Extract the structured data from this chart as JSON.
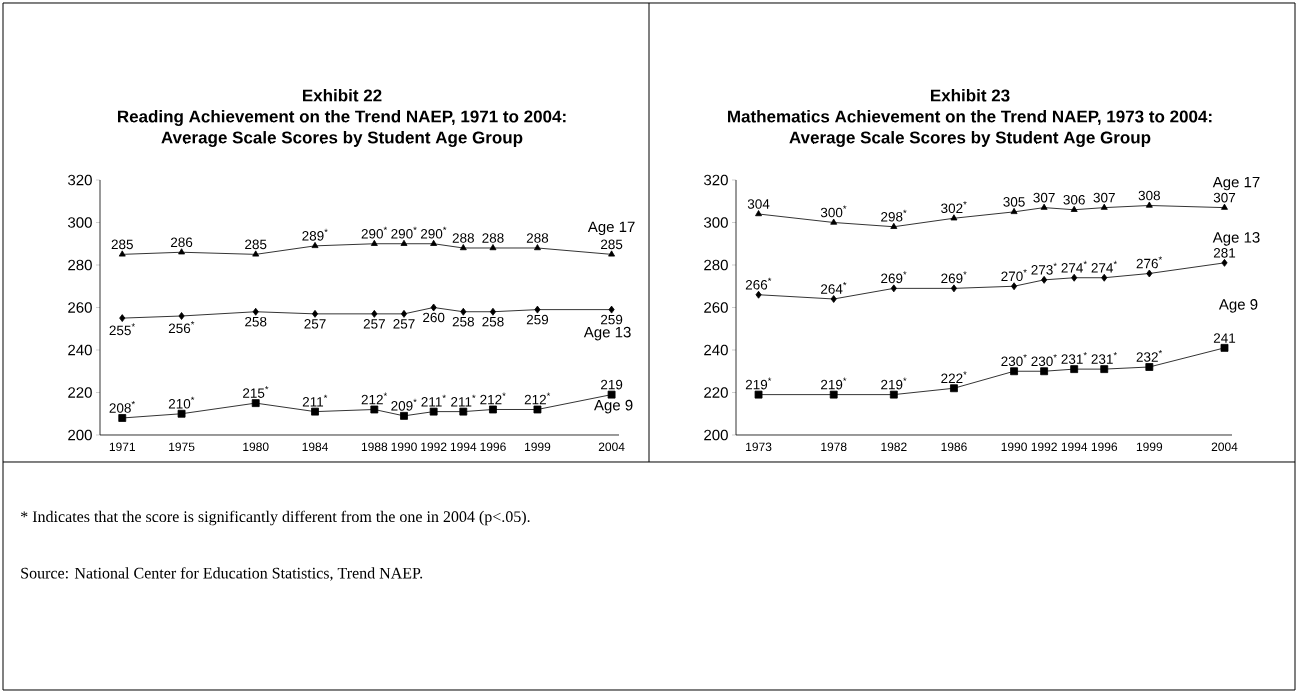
{
  "chart_data": [
    {
      "type": "line",
      "title": "Exhibit 22",
      "subtitle": "Reading Achievement on the Trend NAEP, 1971 to 2004: Average Scale Scores by Student Age Group",
      "x": [
        1971,
        1975,
        1980,
        1984,
        1988,
        1990,
        1992,
        1994,
        1996,
        1999,
        2004
      ],
      "xlim": [
        1969.5,
        2004.5
      ],
      "xticks": [
        1971,
        1975,
        1980,
        1984,
        1988,
        1990,
        1992,
        1994,
        1996,
        1999,
        2004
      ],
      "ylim": [
        200,
        320
      ],
      "yticks": [
        200,
        220,
        240,
        260,
        280,
        300,
        320
      ],
      "series": [
        {
          "name": "Age 17",
          "color": "#000000",
          "marker": "triangle",
          "values": [
            285,
            286,
            285,
            289,
            290,
            290,
            290,
            288,
            288,
            288,
            285
          ],
          "value_labels": [
            "285",
            "286",
            "285",
            "289$^{*}$",
            "290$^{*}$",
            "290$^{*}$",
            "290$^{*}$",
            "288",
            "288",
            "288",
            "285"
          ]
        },
        {
          "name": "Age 13",
          "color": "#000000",
          "marker": "diamond",
          "values": [
            255,
            256,
            258,
            257,
            257,
            257,
            260,
            258,
            258,
            259,
            259
          ],
          "value_labels": [
            "255$^{*}$",
            "256$^{*}$",
            "258",
            "257",
            "257",
            "257",
            "260",
            "258",
            "258",
            "259",
            "259"
          ]
        },
        {
          "name": "Age 9",
          "color": "#000000",
          "marker": "square",
          "values": [
            208,
            210,
            215,
            211,
            212,
            209,
            211,
            211,
            212,
            212,
            219
          ],
          "value_labels": [
            "208$^{*}$",
            "210$^{*}$",
            "215$^{*}$",
            "211$^{*}$",
            "212$^{*}$",
            "209$^{*}$",
            "211$^{*}$",
            "211$^{*}$",
            "212$^{*}$",
            "212$^{*}$",
            "219"
          ]
        }
      ],
      "annotations": [
        "* Indicates that the score is significantly different from the one in 2004 (p<.05).",
        "Source: National Center for Education Statistics, Trend NAEP."
      ]
    },
    {
      "type": "line",
      "title": "Exhibit 23",
      "subtitle": "Mathematics Achievement on the Trend NAEP, 1973 to 2004: Average Scale Scores by Student Age Group",
      "x": [
        1973,
        1978,
        1982,
        1986,
        1990,
        1992,
        1994,
        1996,
        1999,
        2004
      ],
      "xlim": [
        1971.5,
        2004.5
      ],
      "xticks": [
        1973,
        1978,
        1982,
        1986,
        1990,
        1992,
        1994,
        1996,
        1999,
        2004
      ],
      "ylim": [
        200,
        320
      ],
      "yticks": [
        200,
        220,
        240,
        260,
        280,
        300,
        320
      ],
      "series": [
        {
          "name": "Age 17",
          "color": "#000000",
          "marker": "triangle",
          "values": [
            304,
            300,
            298,
            302,
            305,
            307,
            306,
            307,
            308,
            307
          ],
          "value_labels": [
            "304",
            "300$^{*}$",
            "298$^{*}$",
            "302$^{*}$",
            "305",
            "307",
            "306",
            "307",
            "308",
            "307"
          ]
        },
        {
          "name": "Age 13",
          "color": "#000000",
          "marker": "diamond",
          "values": [
            266,
            264,
            269,
            269,
            270,
            273,
            274,
            274,
            276,
            281
          ],
          "value_labels": [
            "266$^{*}$",
            "264$^{*}$",
            "269$^{*}$",
            "269$^{*}$",
            "270$^{*}$",
            "273$^{*}$",
            "274$^{*}$",
            "274$^{*}$",
            "276$^{*}$",
            "281"
          ]
        },
        {
          "name": "Age 9",
          "color": "#000000",
          "marker": "square",
          "values": [
            219,
            219,
            219,
            222,
            230,
            230,
            231,
            231,
            232,
            241
          ],
          "value_labels": [
            "219$^{*}$",
            "219$^{*}$",
            "219$^{*}$",
            "222$^{*}$",
            "230$^{*}$",
            "230$^{*}$",
            "231$^{*}$",
            "231$^{*}$",
            "232$^{*}$",
            "241"
          ]
        }
      ]
    }
  ]
}
